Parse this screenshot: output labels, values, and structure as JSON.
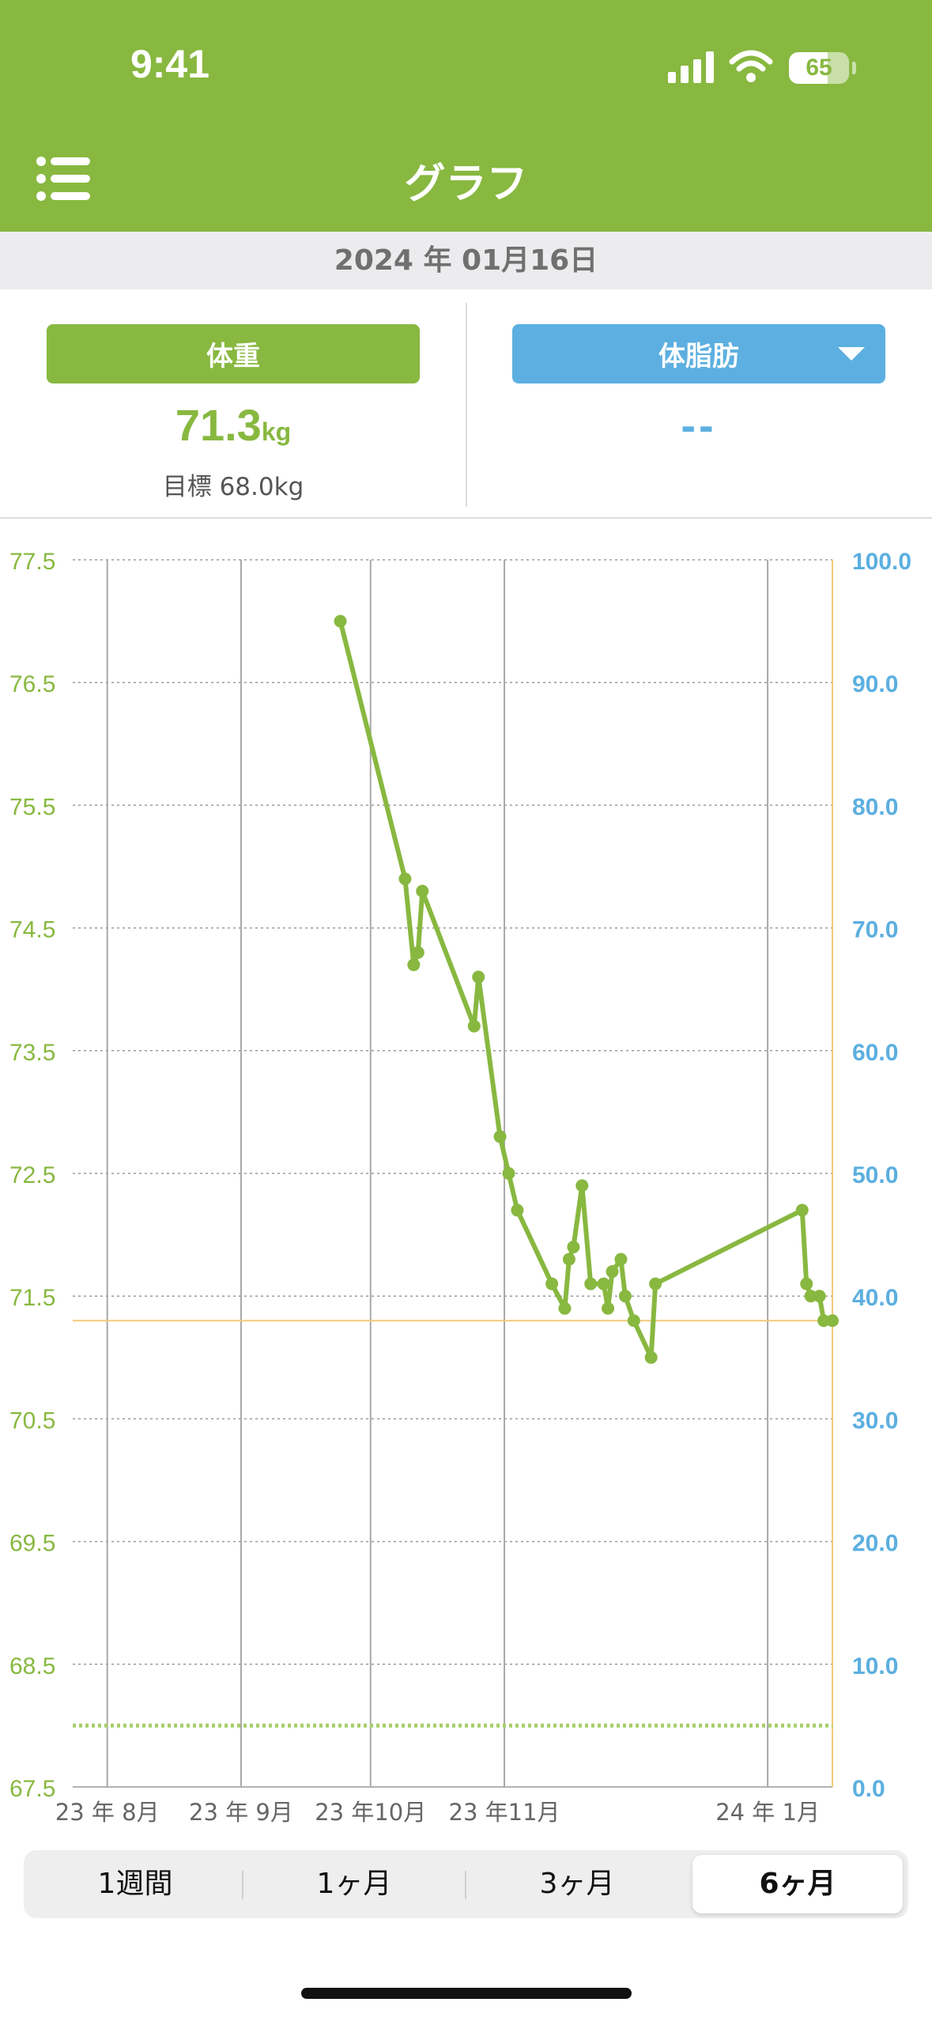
{
  "status_bar": {
    "time": "9:41",
    "battery_level": "65",
    "battery_fraction": 0.65,
    "icons": [
      "signal-icon",
      "wifi-icon",
      "battery-icon"
    ]
  },
  "header": {
    "title": "グラフ",
    "menu_icon": "list-icon"
  },
  "date": "2024 年 01月16日",
  "metrics": {
    "weight": {
      "label": "体重",
      "value": "71.3",
      "unit": "kg",
      "goal": "目標 68.0kg",
      "color": "#88b840"
    },
    "body_fat": {
      "label": "体脂肪",
      "value": "--",
      "color": "#5cafe0",
      "dropdown_icon": "triangle-down-icon"
    }
  },
  "period_tabs": {
    "items": [
      "1週間",
      "1ヶ月",
      "3ヶ月",
      "6ヶ月"
    ],
    "selected": "6ヶ月"
  },
  "chart_data": {
    "type": "line",
    "y_left": {
      "ticks": [
        "77.5",
        "76.5",
        "75.5",
        "74.5",
        "73.5",
        "72.5",
        "71.5",
        "70.5",
        "69.5",
        "68.5",
        "67.5"
      ],
      "range": [
        67.5,
        77.5
      ],
      "color": "#88b840"
    },
    "y_right": {
      "ticks": [
        "100.0",
        "90.0",
        "80.0",
        "70.0",
        "60.0",
        "50.0",
        "40.0",
        "30.0",
        "20.0",
        "10.0",
        "0.0"
      ],
      "range": [
        0,
        100
      ],
      "color": "#5cafe0"
    },
    "x_ticks": [
      {
        "label": "23 年 8月",
        "date": "2023-08-01"
      },
      {
        "label": "23 年 9月",
        "date": "2023-09-01"
      },
      {
        "label": "23 年10月",
        "date": "2023-10-01"
      },
      {
        "label": "23 年11月",
        "date": "2023-11-01"
      },
      {
        "label": "24 年 1月",
        "date": "2024-01-01"
      }
    ],
    "x_range": [
      "2023-07-24",
      "2024-01-16"
    ],
    "current_value_line": 71.3,
    "goal_line": 68.0,
    "grid": true,
    "series": [
      {
        "color": "#88b840",
        "points": [
          {
            "date": "2023-09-24",
            "y": 77.0
          },
          {
            "date": "2023-10-09",
            "y": 74.9
          },
          {
            "date": "2023-10-11",
            "y": 74.2
          },
          {
            "date": "2023-10-12",
            "y": 74.3
          },
          {
            "date": "2023-10-13",
            "y": 74.8
          },
          {
            "date": "2023-10-25",
            "y": 73.7
          },
          {
            "date": "2023-10-26",
            "y": 74.1
          },
          {
            "date": "2023-10-31",
            "y": 72.8
          },
          {
            "date": "2023-11-02",
            "y": 72.5
          },
          {
            "date": "2023-11-04",
            "y": 72.2
          },
          {
            "date": "2023-11-12",
            "y": 71.6
          },
          {
            "date": "2023-11-15",
            "y": 71.4
          },
          {
            "date": "2023-11-16",
            "y": 71.8
          },
          {
            "date": "2023-11-17",
            "y": 71.9
          },
          {
            "date": "2023-11-19",
            "y": 72.4
          },
          {
            "date": "2023-11-21",
            "y": 71.6
          },
          {
            "date": "2023-11-24",
            "y": 71.6
          },
          {
            "date": "2023-11-25",
            "y": 71.4
          },
          {
            "date": "2023-11-26",
            "y": 71.7
          },
          {
            "date": "2023-11-28",
            "y": 71.8
          },
          {
            "date": "2023-11-29",
            "y": 71.5
          },
          {
            "date": "2023-12-01",
            "y": 71.3
          },
          {
            "date": "2023-12-05",
            "y": 71.0
          },
          {
            "date": "2023-12-06",
            "y": 71.6
          },
          {
            "date": "2024-01-09",
            "y": 72.2
          },
          {
            "date": "2024-01-10",
            "y": 71.6
          },
          {
            "date": "2024-01-11",
            "y": 71.5
          },
          {
            "date": "2024-01-13",
            "y": 71.5
          },
          {
            "date": "2024-01-14",
            "y": 71.3
          },
          {
            "date": "2024-01-16",
            "y": 71.3
          }
        ]
      }
    ]
  }
}
